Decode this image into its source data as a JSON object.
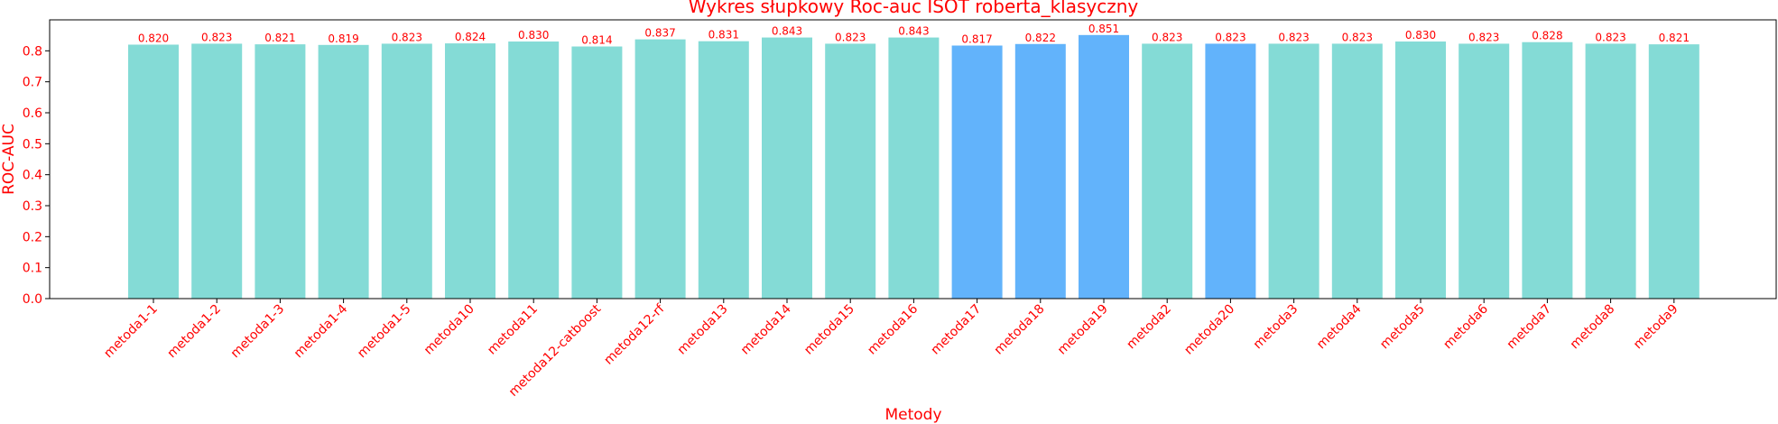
{
  "chart_data": {
    "type": "bar",
    "title": "Wykres słupkowy Roc-auc ISOT roberta_klasyczny",
    "xlabel": "Metody",
    "ylabel": "ROC-AUC",
    "ylim": [
      0,
      0.9
    ],
    "yticks": [
      "0.0",
      "0.1",
      "0.2",
      "0.3",
      "0.4",
      "0.5",
      "0.6",
      "0.7",
      "0.8"
    ],
    "grid": false,
    "categories": [
      "metoda1-1",
      "metoda1-2",
      "metoda1-3",
      "metoda1-4",
      "metoda1-5",
      "metoda10",
      "metoda11",
      "metoda12-catboost",
      "metoda12-rf",
      "metoda13",
      "metoda14",
      "metoda15",
      "metoda16",
      "metoda17",
      "metoda18",
      "metoda19",
      "metoda2",
      "metoda20",
      "metoda3",
      "metoda4",
      "metoda5",
      "metoda6",
      "metoda7",
      "metoda8",
      "metoda9"
    ],
    "values": [
      0.82,
      0.823,
      0.821,
      0.819,
      0.823,
      0.824,
      0.83,
      0.814,
      0.837,
      0.831,
      0.843,
      0.823,
      0.843,
      0.817,
      0.822,
      0.851,
      0.823,
      0.823,
      0.823,
      0.823,
      0.83,
      0.823,
      0.828,
      0.823,
      0.821
    ],
    "value_labels": [
      "0.820",
      "0.823",
      "0.821",
      "0.819",
      "0.823",
      "0.824",
      "0.830",
      "0.814",
      "0.837",
      "0.831",
      "0.843",
      "0.823",
      "0.843",
      "0.817",
      "0.822",
      "0.851",
      "0.823",
      "0.823",
      "0.823",
      "0.823",
      "0.830",
      "0.823",
      "0.828",
      "0.823",
      "0.821"
    ],
    "bar_colors": [
      "#84dbd6",
      "#84dbd6",
      "#84dbd6",
      "#84dbd6",
      "#84dbd6",
      "#84dbd6",
      "#84dbd6",
      "#84dbd6",
      "#84dbd6",
      "#84dbd6",
      "#84dbd6",
      "#84dbd6",
      "#84dbd6",
      "#62b3fb",
      "#62b3fb",
      "#62b3fb",
      "#84dbd6",
      "#62b3fb",
      "#84dbd6",
      "#84dbd6",
      "#84dbd6",
      "#84dbd6",
      "#84dbd6",
      "#84dbd6",
      "#84dbd6"
    ],
    "text_color": "#ff0000",
    "axis_color": "#000000"
  }
}
